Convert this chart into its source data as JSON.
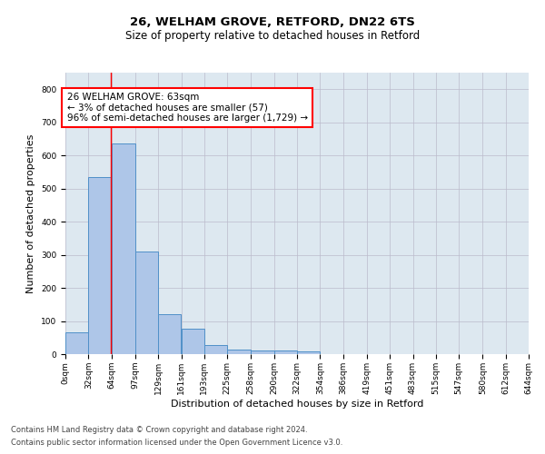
{
  "title1": "26, WELHAM GROVE, RETFORD, DN22 6TS",
  "title2": "Size of property relative to detached houses in Retford",
  "xlabel": "Distribution of detached houses by size in Retford",
  "ylabel": "Number of detached properties",
  "bar_values": [
    65,
    535,
    635,
    310,
    120,
    78,
    28,
    15,
    10,
    10,
    8,
    0,
    0,
    0,
    0,
    0,
    0,
    0,
    0,
    0
  ],
  "bin_edges": [
    0,
    32,
    64,
    97,
    129,
    161,
    193,
    225,
    258,
    290,
    322,
    354,
    386,
    419,
    451,
    483,
    515,
    547,
    580,
    612,
    644
  ],
  "tick_labels": [
    "0sqm",
    "32sqm",
    "64sqm",
    "97sqm",
    "129sqm",
    "161sqm",
    "193sqm",
    "225sqm",
    "258sqm",
    "290sqm",
    "322sqm",
    "354sqm",
    "386sqm",
    "419sqm",
    "451sqm",
    "483sqm",
    "515sqm",
    "547sqm",
    "580sqm",
    "612sqm",
    "644sqm"
  ],
  "bar_color": "#aec6e8",
  "bar_edgecolor": "#5090c8",
  "bar_linewidth": 0.7,
  "property_line_x": 63,
  "annotation_line1": "26 WELHAM GROVE: 63sqm",
  "annotation_line2": "← 3% of detached houses are smaller (57)",
  "annotation_line3": "96% of semi-detached houses are larger (1,729) →",
  "annotation_box_color": "white",
  "annotation_box_edgecolor": "red",
  "vline_color": "red",
  "vline_linewidth": 1.0,
  "ylim": [
    0,
    850
  ],
  "yticks": [
    0,
    100,
    200,
    300,
    400,
    500,
    600,
    700,
    800
  ],
  "grid_color": "#bbbbcc",
  "plot_bg_color": "#dde8f0",
  "title1_fontsize": 9.5,
  "title2_fontsize": 8.5,
  "xlabel_fontsize": 8,
  "ylabel_fontsize": 8,
  "tick_fontsize": 6.5,
  "annotation_fontsize": 7.5,
  "footer_fontsize": 6.0,
  "footer1": "Contains HM Land Registry data © Crown copyright and database right 2024.",
  "footer2": "Contains public sector information licensed under the Open Government Licence v3.0."
}
